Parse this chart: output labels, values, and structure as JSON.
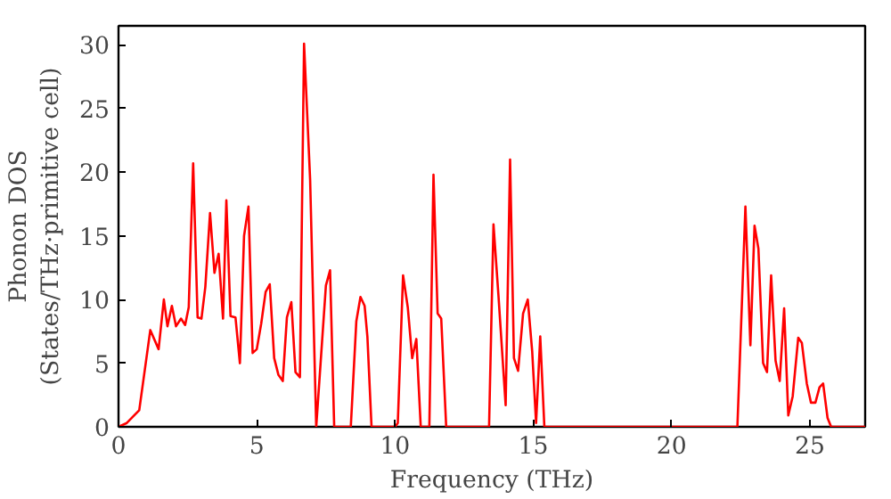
{
  "chart_data": {
    "type": "line",
    "xlabel": "Frequency (THz)",
    "ylabel": "Phonon DOS\n(States/THz·primitive cell)",
    "xlim": [
      0,
      27
    ],
    "ylim": [
      0,
      31.5
    ],
    "xticks": [
      0,
      5,
      10,
      15,
      20,
      25
    ],
    "yticks": [
      0,
      5,
      10,
      15,
      20,
      25,
      30
    ],
    "grid": false,
    "line_style": "solid",
    "marker": "none",
    "series": [
      {
        "color": "#ff0000",
        "x": [
          0,
          0.3,
          0.75,
          1.15,
          1.45,
          1.64,
          1.77,
          1.93,
          2.08,
          2.26,
          2.41,
          2.54,
          2.7,
          2.86,
          3.0,
          3.14,
          3.31,
          3.47,
          3.62,
          3.78,
          3.9,
          4.05,
          4.23,
          4.39,
          4.54,
          4.7,
          4.85,
          5.0,
          5.16,
          5.32,
          5.47,
          5.63,
          5.78,
          5.94,
          6.09,
          6.25,
          6.4,
          6.56,
          6.71,
          6.93,
          7.15,
          7.5,
          7.65,
          7.8,
          8.4,
          8.6,
          8.75,
          8.9,
          9.0,
          9.15,
          10.0,
          10.1,
          10.29,
          10.46,
          10.62,
          10.77,
          10.93,
          11.24,
          11.39,
          11.54,
          11.67,
          11.85,
          13.4,
          13.56,
          13.74,
          14.0,
          14.16,
          14.3,
          14.45,
          14.63,
          14.8,
          14.96,
          15.1,
          15.25,
          15.4,
          22.38,
          22.67,
          22.85,
          23.0,
          23.14,
          23.31,
          23.45,
          23.6,
          23.76,
          23.91,
          24.07,
          24.22,
          24.38,
          24.58,
          24.71,
          24.89,
          25.04,
          25.2,
          25.35,
          25.48,
          25.64,
          25.77,
          27
        ],
        "values": [
          0,
          0.3,
          1.3,
          7.6,
          6.1,
          10,
          7.9,
          9.5,
          7.9,
          8.5,
          8,
          9.4,
          20.7,
          8.6,
          8.5,
          11,
          16.8,
          12.1,
          13.6,
          8.5,
          17.8,
          8.7,
          8.6,
          5,
          15,
          17.3,
          5.8,
          6.1,
          8.1,
          10.6,
          11.2,
          5.4,
          4.1,
          3.6,
          8.6,
          9.8,
          4.3,
          3.9,
          30.1,
          19.4,
          0,
          11.1,
          12.3,
          0,
          0,
          8.3,
          10.2,
          9.5,
          7.1,
          0,
          0,
          0.3,
          11.9,
          9.4,
          5.4,
          6.9,
          0,
          0,
          19.8,
          8.9,
          8.5,
          0,
          0,
          15.9,
          10.3,
          1.7,
          21,
          5.4,
          4.4,
          8.9,
          10,
          5.9,
          0.3,
          7.1,
          0,
          0,
          17.3,
          6.4,
          15.8,
          14,
          5,
          4.3,
          11.9,
          5.2,
          3.6,
          9.3,
          0.9,
          2.4,
          7,
          6.6,
          3.4,
          1.9,
          1.9,
          3.1,
          3.4,
          0.7,
          0,
          0
        ]
      }
    ]
  }
}
